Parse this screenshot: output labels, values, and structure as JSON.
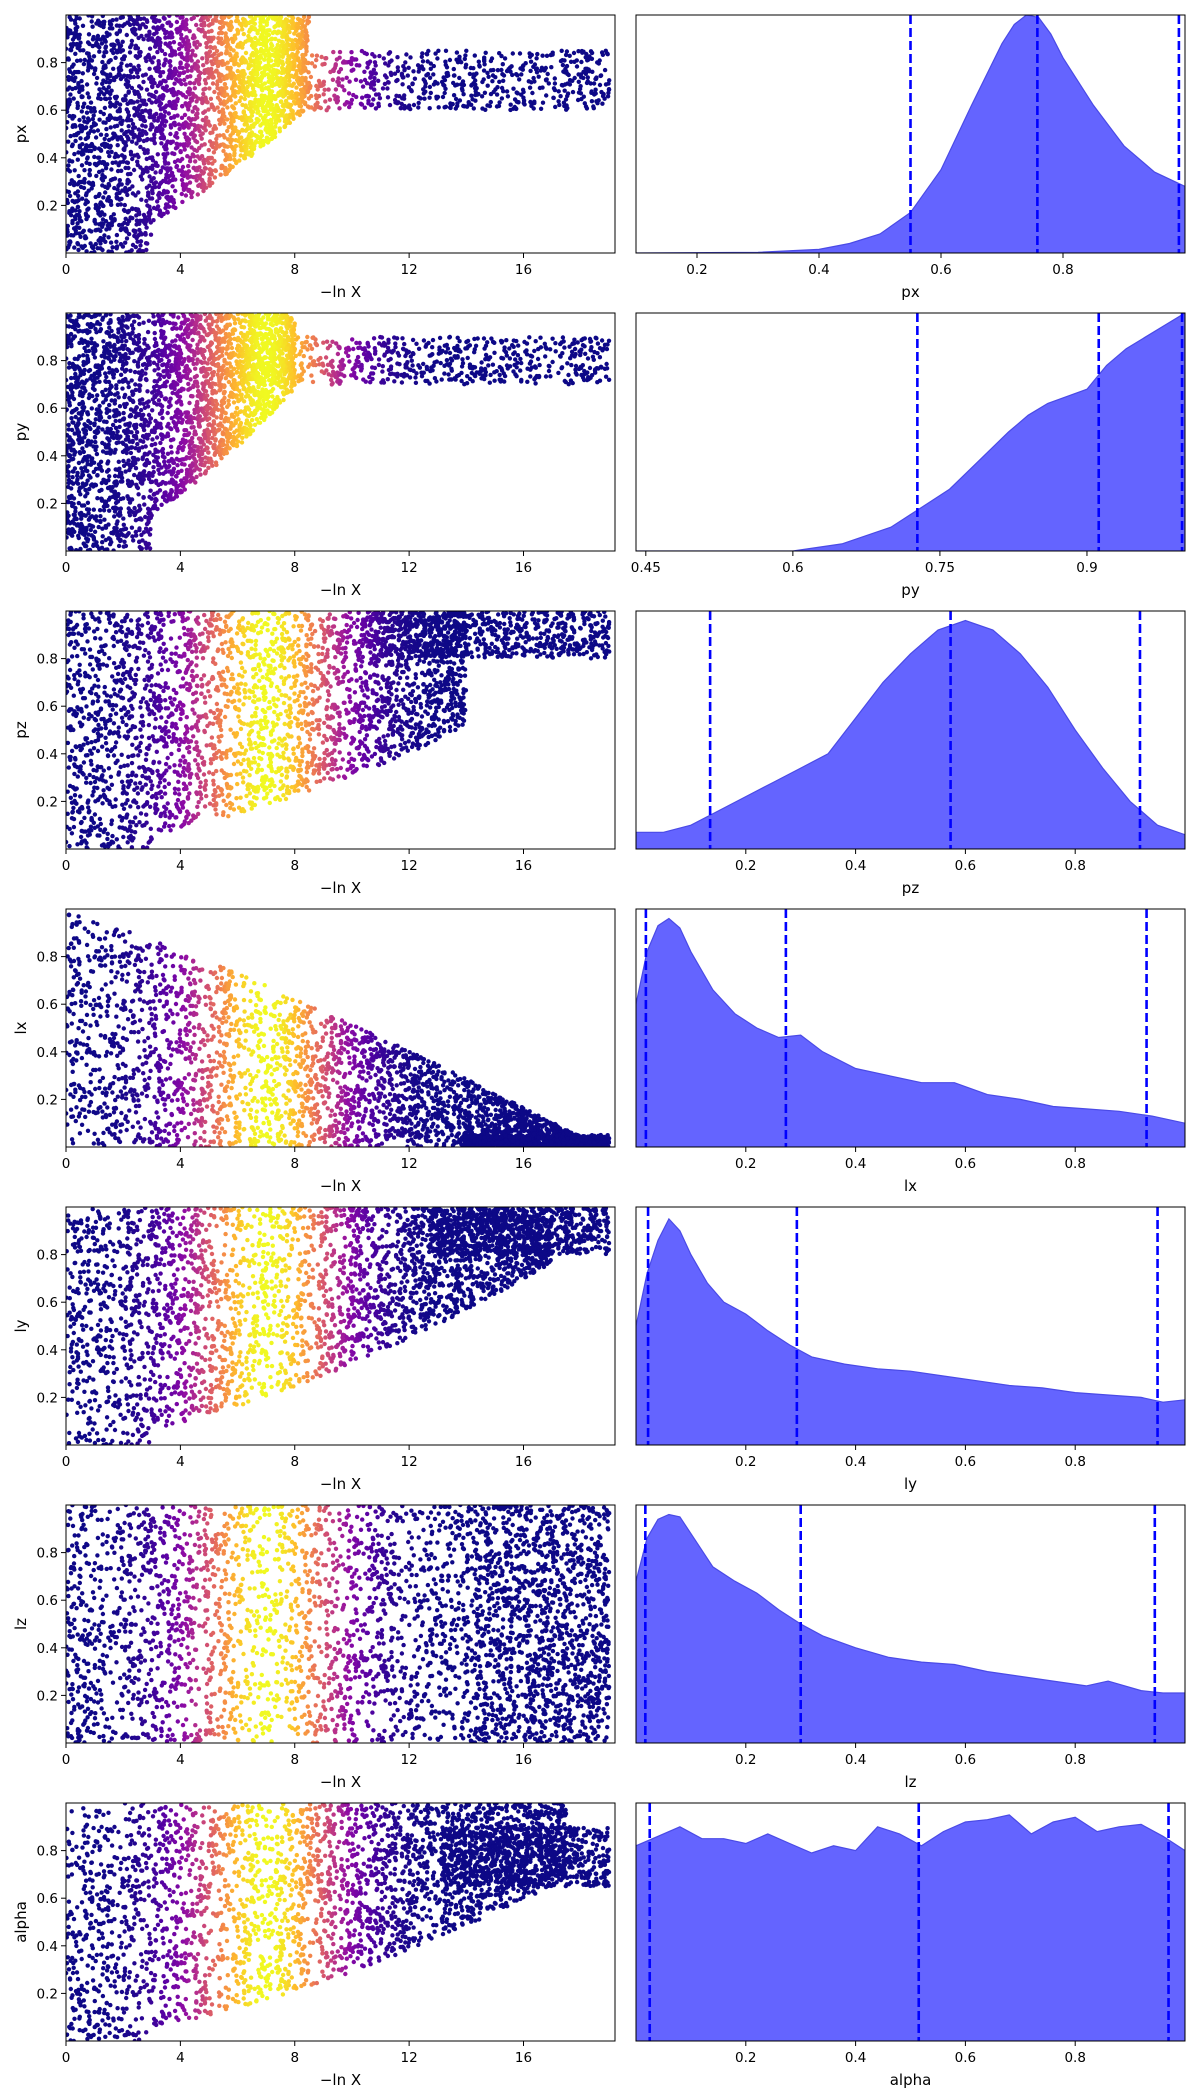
{
  "colors": {
    "kde_fill": "#6464ff",
    "kde_edge": "#4a4ae6",
    "quantile_line": "#0000ff",
    "scatter_cmap": "plasma"
  },
  "chart_data": [
    {
      "type": "scatter",
      "panel": "px-trace",
      "xlabel": "−ln X",
      "ylabel": "px",
      "xlim": [
        0,
        19.2
      ],
      "ylim": [
        0,
        1
      ],
      "xticks": [
        0,
        4,
        8,
        12,
        16
      ],
      "yticks": [
        0.2,
        0.4,
        0.6,
        0.8
      ],
      "cloud": {
        "peak_x": 7.0,
        "front_y0": 0.02,
        "front_y1": 0.72,
        "front_x1": 8.5,
        "tail_low": 0.6,
        "tail_high": 0.85,
        "tail_center": 0.74,
        "tail_end": 19.0
      }
    },
    {
      "type": "area",
      "panel": "px-kde",
      "xlabel": "px",
      "xlim": [
        0.1,
        1.0
      ],
      "xticks": [
        0.2,
        0.4,
        0.6,
        0.8
      ],
      "quantiles": [
        0.55,
        0.758,
        0.99
      ],
      "x": [
        0.1,
        0.3,
        0.4,
        0.45,
        0.5,
        0.55,
        0.6,
        0.65,
        0.7,
        0.72,
        0.74,
        0.76,
        0.78,
        0.8,
        0.85,
        0.9,
        0.95,
        1.0
      ],
      "y": [
        0.0,
        0.003,
        0.015,
        0.04,
        0.08,
        0.17,
        0.35,
        0.62,
        0.88,
        0.96,
        1.0,
        0.99,
        0.92,
        0.82,
        0.62,
        0.45,
        0.34,
        0.28
      ]
    },
    {
      "type": "scatter",
      "panel": "py-trace",
      "xlabel": "−ln X",
      "ylabel": "py",
      "xlim": [
        0,
        19.2
      ],
      "ylim": [
        0,
        1
      ],
      "xticks": [
        0,
        4,
        8,
        12,
        16
      ],
      "yticks": [
        0.2,
        0.4,
        0.6,
        0.8
      ],
      "cloud": {
        "peak_x": 7.0,
        "front_y0": 0.02,
        "front_y1": 0.8,
        "front_x1": 8.0,
        "tail_low": 0.7,
        "tail_high": 0.9,
        "tail_center": 0.79,
        "tail_end": 19.0
      }
    },
    {
      "type": "area",
      "panel": "py-kde",
      "xlabel": "py",
      "xlim": [
        0.44,
        1.0
      ],
      "xticks": [
        0.45,
        0.6,
        0.75,
        0.9
      ],
      "quantiles": [
        0.727,
        0.912,
        0.997
      ],
      "x": [
        0.44,
        0.6,
        0.65,
        0.7,
        0.73,
        0.76,
        0.79,
        0.82,
        0.84,
        0.86,
        0.88,
        0.9,
        0.92,
        0.94,
        0.96,
        0.98,
        1.0
      ],
      "y": [
        0.0,
        0.0,
        0.03,
        0.1,
        0.18,
        0.26,
        0.38,
        0.5,
        0.57,
        0.62,
        0.65,
        0.68,
        0.78,
        0.85,
        0.9,
        0.95,
        1.0
      ]
    },
    {
      "type": "scatter",
      "panel": "pz-trace",
      "xlabel": "−ln X",
      "ylabel": "pz",
      "xlim": [
        0,
        19.2
      ],
      "ylim": [
        0,
        1
      ],
      "xticks": [
        0,
        4,
        8,
        12,
        16
      ],
      "yticks": [
        0.2,
        0.4,
        0.6,
        0.8
      ],
      "cloud": {
        "peak_x": 7.0,
        "front_y0": 0.02,
        "front_y1": 0.6,
        "front_x1": 14.0,
        "tail_low": 0.8,
        "tail_high": 1.0,
        "tail_center": 0.92,
        "tail_end": 19.0
      }
    },
    {
      "type": "area",
      "panel": "pz-kde",
      "xlabel": "pz",
      "xlim": [
        0.0,
        1.0
      ],
      "xticks": [
        0.2,
        0.4,
        0.6,
        0.8
      ],
      "quantiles": [
        0.135,
        0.573,
        0.918
      ],
      "x": [
        0.0,
        0.05,
        0.1,
        0.15,
        0.2,
        0.25,
        0.3,
        0.35,
        0.4,
        0.45,
        0.5,
        0.55,
        0.6,
        0.65,
        0.7,
        0.75,
        0.8,
        0.85,
        0.9,
        0.95,
        1.0
      ],
      "y": [
        0.07,
        0.07,
        0.1,
        0.16,
        0.22,
        0.28,
        0.34,
        0.4,
        0.55,
        0.7,
        0.82,
        0.92,
        0.96,
        0.92,
        0.82,
        0.68,
        0.5,
        0.34,
        0.2,
        0.1,
        0.06
      ]
    },
    {
      "type": "scatter",
      "panel": "lx-trace",
      "xlabel": "−ln X",
      "ylabel": "lx",
      "xlim": [
        0,
        19.2
      ],
      "ylim": [
        0,
        1
      ],
      "xticks": [
        0,
        4,
        8,
        12,
        16
      ],
      "yticks": [
        0.2,
        0.4,
        0.6,
        0.8
      ],
      "cloud": {
        "peak_x": 7.0,
        "front_y0": 0.98,
        "front_y1": 0.01,
        "front_x1": 18.5,
        "tail_low": 0.0,
        "tail_high": 0.05,
        "tail_center": 0.01,
        "tail_end": 19.0
      }
    },
    {
      "type": "area",
      "panel": "lx-kde",
      "xlabel": "lx",
      "xlim": [
        0.0,
        1.0
      ],
      "xticks": [
        0.2,
        0.4,
        0.6,
        0.8
      ],
      "quantiles": [
        0.018,
        0.273,
        0.93
      ],
      "x": [
        0.0,
        0.02,
        0.04,
        0.06,
        0.08,
        0.1,
        0.14,
        0.18,
        0.22,
        0.26,
        0.3,
        0.34,
        0.4,
        0.46,
        0.52,
        0.58,
        0.64,
        0.7,
        0.76,
        0.82,
        0.88,
        0.94,
        1.0
      ],
      "y": [
        0.6,
        0.82,
        0.93,
        0.96,
        0.92,
        0.82,
        0.66,
        0.56,
        0.5,
        0.46,
        0.47,
        0.4,
        0.33,
        0.3,
        0.27,
        0.27,
        0.22,
        0.2,
        0.17,
        0.16,
        0.15,
        0.13,
        0.1
      ]
    },
    {
      "type": "scatter",
      "panel": "ly-trace",
      "xlabel": "−ln X",
      "ylabel": "ly",
      "xlim": [
        0,
        19.2
      ],
      "ylim": [
        0,
        1
      ],
      "xticks": [
        0,
        4,
        8,
        12,
        16
      ],
      "yticks": [
        0.2,
        0.4,
        0.6,
        0.8
      ],
      "cloud": {
        "peak_x": 7.0,
        "front_y0": 0.02,
        "front_y1": 0.9,
        "front_x1": 17.0,
        "tail_low": 0.8,
        "tail_high": 1.0,
        "tail_center": 0.92,
        "tail_end": 19.0
      }
    },
    {
      "type": "area",
      "panel": "ly-kde",
      "xlabel": "ly",
      "xlim": [
        0.0,
        1.0
      ],
      "xticks": [
        0.2,
        0.4,
        0.6,
        0.8
      ],
      "quantiles": [
        0.022,
        0.293,
        0.95
      ],
      "x": [
        0.0,
        0.02,
        0.04,
        0.06,
        0.08,
        0.1,
        0.13,
        0.16,
        0.2,
        0.24,
        0.28,
        0.32,
        0.38,
        0.44,
        0.5,
        0.56,
        0.62,
        0.68,
        0.74,
        0.8,
        0.86,
        0.92,
        0.96,
        1.0
      ],
      "y": [
        0.5,
        0.72,
        0.86,
        0.95,
        0.9,
        0.8,
        0.68,
        0.6,
        0.55,
        0.48,
        0.42,
        0.37,
        0.34,
        0.32,
        0.31,
        0.29,
        0.27,
        0.25,
        0.24,
        0.22,
        0.21,
        0.2,
        0.18,
        0.19
      ]
    },
    {
      "type": "scatter",
      "panel": "lz-trace",
      "xlabel": "−ln X",
      "ylabel": "lz",
      "xlim": [
        0,
        19.2
      ],
      "ylim": [
        0,
        1
      ],
      "xticks": [
        0,
        4,
        8,
        12,
        16
      ],
      "yticks": [
        0.2,
        0.4,
        0.6,
        0.8
      ],
      "cloud": {
        "peak_x": 7.0,
        "front_y0": 0.5,
        "front_y1": 0.5,
        "front_x1": 19.0,
        "tail_low": 0.0,
        "tail_high": 1.0,
        "tail_center": 0.5,
        "tail_end": 19.0
      }
    },
    {
      "type": "area",
      "panel": "lz-kde",
      "xlabel": "lz",
      "xlim": [
        0.0,
        1.0
      ],
      "xticks": [
        0.2,
        0.4,
        0.6,
        0.8
      ],
      "quantiles": [
        0.017,
        0.3,
        0.945
      ],
      "x": [
        0.0,
        0.02,
        0.04,
        0.06,
        0.08,
        0.1,
        0.14,
        0.18,
        0.22,
        0.26,
        0.3,
        0.34,
        0.4,
        0.46,
        0.52,
        0.58,
        0.64,
        0.7,
        0.76,
        0.82,
        0.86,
        0.92,
        0.96,
        1.0
      ],
      "y": [
        0.68,
        0.86,
        0.94,
        0.96,
        0.95,
        0.88,
        0.74,
        0.68,
        0.63,
        0.56,
        0.5,
        0.45,
        0.4,
        0.36,
        0.34,
        0.33,
        0.3,
        0.28,
        0.26,
        0.24,
        0.26,
        0.22,
        0.21,
        0.21
      ]
    },
    {
      "type": "scatter",
      "panel": "alpha-trace",
      "xlabel": "−ln X",
      "ylabel": "alpha",
      "xlim": [
        0,
        19.2
      ],
      "ylim": [
        0,
        1
      ],
      "xticks": [
        0,
        4,
        8,
        12,
        16
      ],
      "yticks": [
        0.2,
        0.4,
        0.6,
        0.8
      ],
      "cloud": {
        "peak_x": 7.0,
        "front_y0": 0.02,
        "front_y1": 0.8,
        "front_x1": 17.5,
        "tail_low": 0.65,
        "tail_high": 0.9,
        "tail_center": 0.78,
        "tail_end": 19.0
      }
    },
    {
      "type": "area",
      "panel": "alpha-kde",
      "xlabel": "alpha",
      "xlim": [
        0.0,
        1.0
      ],
      "xticks": [
        0.2,
        0.4,
        0.6,
        0.8
      ],
      "quantiles": [
        0.025,
        0.515,
        0.97
      ],
      "x": [
        0.0,
        0.04,
        0.08,
        0.12,
        0.16,
        0.2,
        0.24,
        0.28,
        0.32,
        0.36,
        0.4,
        0.44,
        0.48,
        0.52,
        0.56,
        0.6,
        0.64,
        0.68,
        0.72,
        0.76,
        0.8,
        0.84,
        0.88,
        0.92,
        0.96,
        1.0
      ],
      "y": [
        0.82,
        0.86,
        0.9,
        0.85,
        0.85,
        0.83,
        0.87,
        0.83,
        0.79,
        0.82,
        0.8,
        0.9,
        0.87,
        0.82,
        0.88,
        0.92,
        0.93,
        0.95,
        0.87,
        0.92,
        0.94,
        0.88,
        0.9,
        0.91,
        0.86,
        0.8
      ]
    }
  ]
}
